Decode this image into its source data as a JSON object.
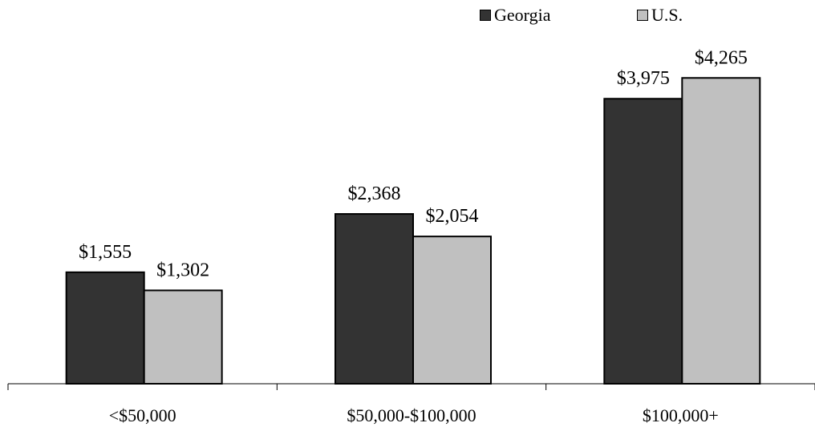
{
  "chart_data": {
    "type": "bar",
    "categories": [
      "<$50,000",
      "$50,000-$100,000",
      "$100,000+"
    ],
    "series": [
      {
        "name": "Georgia",
        "values": [
          1555,
          2368,
          3975
        ],
        "labels": [
          "$1,555",
          "$2,368",
          "$3,975"
        ],
        "color": "#333333"
      },
      {
        "name": "U.S.",
        "values": [
          1302,
          2054,
          4265
        ],
        "labels": [
          "$1,302",
          "$2,054",
          "$4,265"
        ],
        "color": "#c0c0c0"
      }
    ],
    "legend_position": "top-right",
    "grid": false
  },
  "legend": {
    "georgia_label": "Georgia",
    "us_label": "U.S."
  }
}
